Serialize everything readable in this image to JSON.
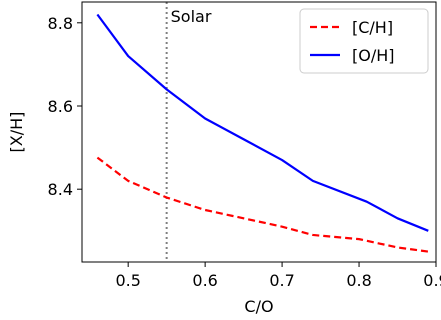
{
  "chart_data": {
    "type": "line",
    "xlabel": "C/O",
    "ylabel": "[X/H]",
    "xlim": [
      0.44,
      0.9
    ],
    "ylim": [
      8.225,
      8.85
    ],
    "xticks": [
      "0.5",
      "0.6",
      "0.7",
      "0.8",
      "0.9"
    ],
    "yticks": [
      "8.4",
      "8.6",
      "8.8"
    ],
    "xtick_values": [
      0.5,
      0.6,
      0.7,
      0.8,
      0.9
    ],
    "ytick_values": [
      8.4,
      8.6,
      8.8
    ],
    "grid": false,
    "legend_position": "top-right",
    "series": [
      {
        "name": "[C/H]",
        "color": "#ff0000",
        "linestyle": "dashed",
        "x": [
          0.46,
          0.5,
          0.55,
          0.6,
          0.65,
          0.7,
          0.74,
          0.8,
          0.85,
          0.89
        ],
        "y": [
          8.476,
          8.42,
          8.38,
          8.35,
          8.33,
          8.31,
          8.29,
          8.28,
          8.26,
          8.25
        ]
      },
      {
        "name": "[O/H]",
        "color": "#0000ff",
        "linestyle": "solid",
        "x": [
          0.46,
          0.5,
          0.55,
          0.6,
          0.65,
          0.7,
          0.74,
          0.81,
          0.85,
          0.89
        ],
        "y": [
          8.82,
          8.72,
          8.64,
          8.57,
          8.52,
          8.47,
          8.42,
          8.37,
          8.33,
          8.3
        ]
      }
    ],
    "annotations": [
      {
        "text": "Solar",
        "x": 0.55,
        "linestyle": "dotted",
        "color": "#808080"
      }
    ]
  }
}
